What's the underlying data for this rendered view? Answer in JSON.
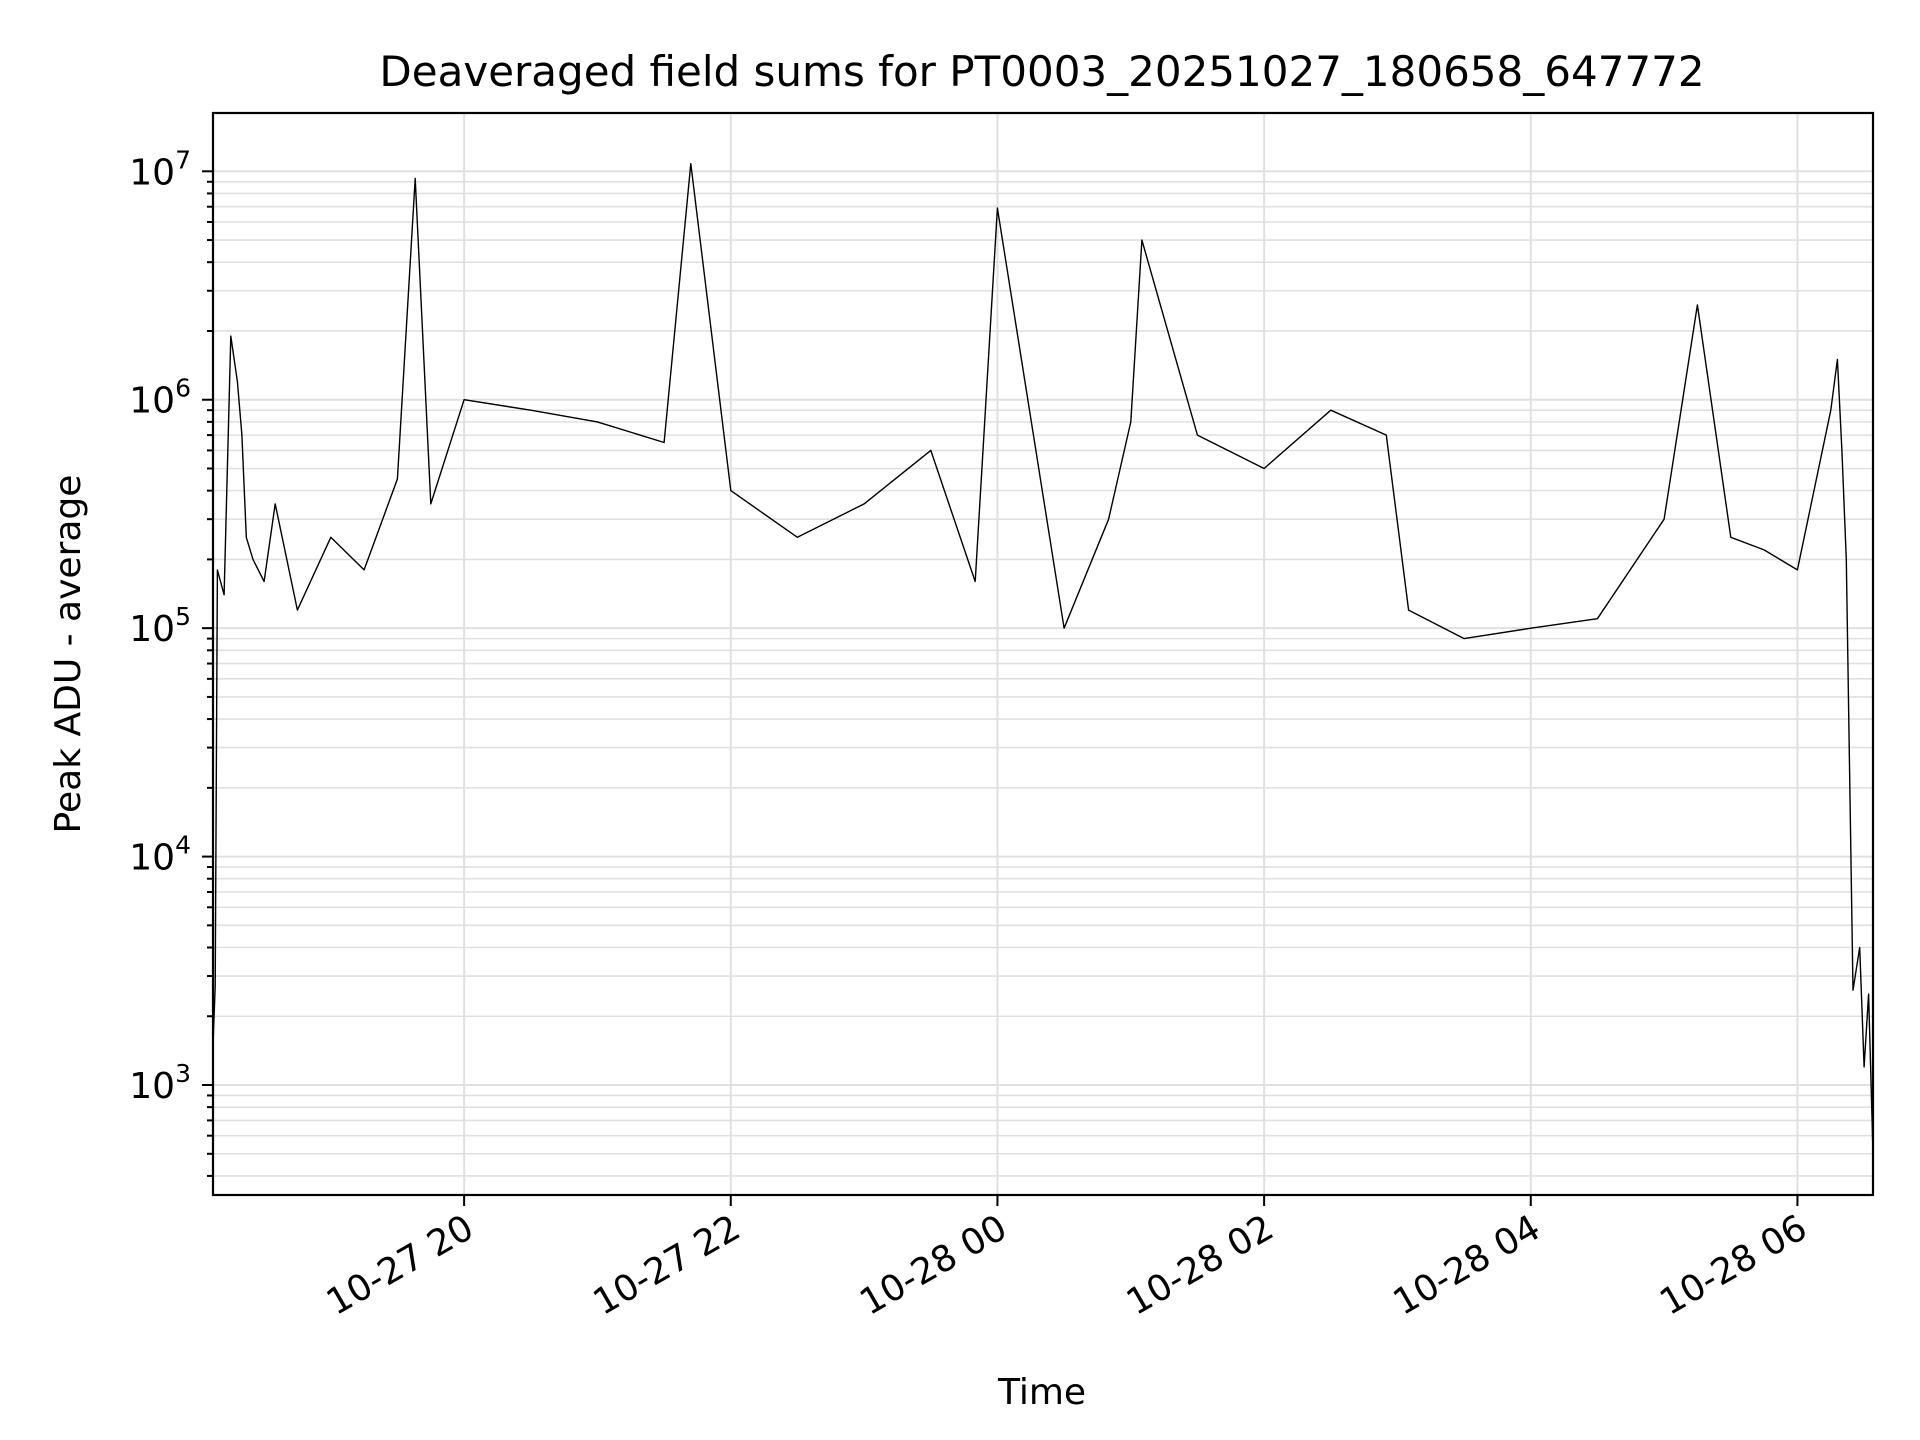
{
  "chart_data": {
    "type": "line",
    "title": "Deaveraged field sums for PT0003_20251027_180658_647772",
    "xlabel": "Time",
    "ylabel": "Peak ADU - average",
    "yscale": "log",
    "ylim": [
      330,
      18000000
    ],
    "xlim": [
      "2025-10-27 18:07",
      "2025-10-28 06:34"
    ],
    "grid": true,
    "line_color": "#000000",
    "grid_color": "#e0e0e0",
    "x_ticks": [
      {
        "value": "2025-10-27 20:00",
        "label": "10-27 20"
      },
      {
        "value": "2025-10-27 22:00",
        "label": "10-27 22"
      },
      {
        "value": "2025-10-28 00:00",
        "label": "10-28 00"
      },
      {
        "value": "2025-10-28 02:00",
        "label": "10-28 02"
      },
      {
        "value": "2025-10-28 04:00",
        "label": "10-28 04"
      },
      {
        "value": "2025-10-28 06:00",
        "label": "10-28 06"
      }
    ],
    "y_ticks": [
      {
        "value": 1000,
        "base": "10",
        "exp": "3"
      },
      {
        "value": 10000,
        "base": "10",
        "exp": "4"
      },
      {
        "value": 100000,
        "base": "10",
        "exp": "5"
      },
      {
        "value": 1000000,
        "base": "10",
        "exp": "6"
      },
      {
        "value": 10000000,
        "base": "10",
        "exp": "7"
      }
    ],
    "series": [
      {
        "x": [
          "2025-10-27 18:07",
          "2025-10-27 18:08",
          "2025-10-27 18:09",
          "2025-10-27 18:12",
          "2025-10-27 18:15",
          "2025-10-27 18:18",
          "2025-10-27 18:20",
          "2025-10-27 18:22",
          "2025-10-27 18:25",
          "2025-10-27 18:30",
          "2025-10-27 18:35",
          "2025-10-27 18:45",
          "2025-10-27 19:00",
          "2025-10-27 19:15",
          "2025-10-27 19:30",
          "2025-10-27 19:38",
          "2025-10-27 19:45",
          "2025-10-27 20:00",
          "2025-10-27 20:30",
          "2025-10-27 21:00",
          "2025-10-27 21:30",
          "2025-10-27 21:42",
          "2025-10-27 22:00",
          "2025-10-27 22:30",
          "2025-10-27 23:00",
          "2025-10-27 23:30",
          "2025-10-27 23:50",
          "2025-10-28 00:00",
          "2025-10-28 00:30",
          "2025-10-28 00:50",
          "2025-10-28 01:00",
          "2025-10-28 01:05",
          "2025-10-28 01:30",
          "2025-10-28 02:00",
          "2025-10-28 02:30",
          "2025-10-28 02:55",
          "2025-10-28 03:05",
          "2025-10-28 03:30",
          "2025-10-28 04:00",
          "2025-10-28 04:30",
          "2025-10-28 05:00",
          "2025-10-28 05:15",
          "2025-10-28 05:30",
          "2025-10-28 05:45",
          "2025-10-28 06:00",
          "2025-10-28 06:15",
          "2025-10-28 06:18",
          "2025-10-28 06:20",
          "2025-10-28 06:22",
          "2025-10-28 06:25",
          "2025-10-28 06:28",
          "2025-10-28 06:30",
          "2025-10-28 06:32",
          "2025-10-28 06:34"
        ],
        "y": [
          1500,
          2700,
          180000,
          140000,
          1900000,
          1200000,
          700000,
          250000,
          200000,
          160000,
          350000,
          120000,
          250000,
          180000,
          450000,
          9300000,
          350000,
          1000000,
          900000,
          800000,
          650000,
          10800000,
          400000,
          250000,
          350000,
          600000,
          160000,
          6900000,
          100000,
          300000,
          800000,
          5000000,
          700000,
          500000,
          900000,
          700000,
          120000,
          90000,
          100000,
          110000,
          300000,
          2600000,
          250000,
          220000,
          180000,
          900000,
          1500000,
          600000,
          200000,
          2600,
          4000,
          1200,
          2500,
          500
        ]
      }
    ]
  }
}
